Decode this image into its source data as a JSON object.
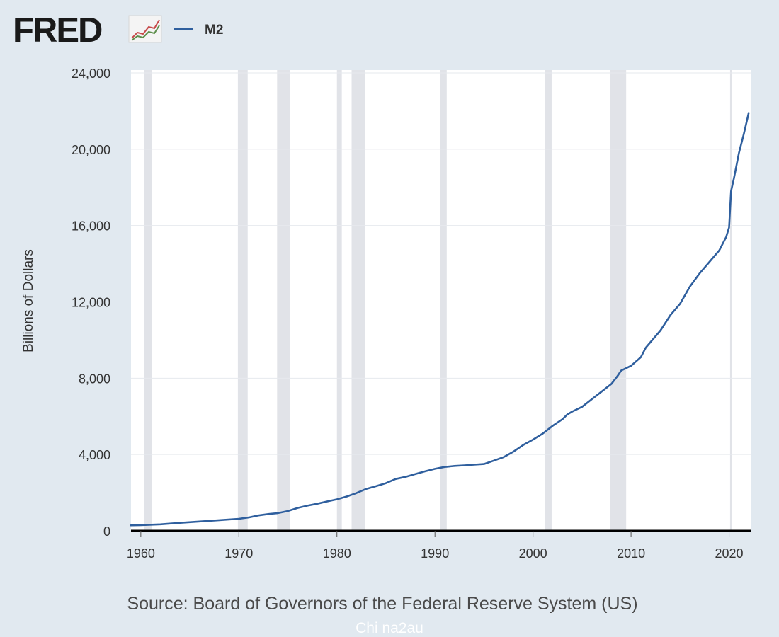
{
  "header": {
    "logo_text": "FRED",
    "legend_label": "M2"
  },
  "footer": {
    "source": "Source: Board of Governors of the Federal Reserve System (US)",
    "watermark": "Chi na2au"
  },
  "colors": {
    "background": "#e1e9f0",
    "plot_background": "#ffffff",
    "recession_band": "#e1e3e8",
    "series_line": "#2f5f9e",
    "axis_line": "#000000",
    "logo_text": "#1a1a1a",
    "logo_icon_red": "#c64a4a",
    "logo_icon_green": "#5e8f4c"
  },
  "chart_data": {
    "type": "line",
    "title": "",
    "xlabel": "",
    "ylabel": "Billions of Dollars",
    "xlim": [
      1959.0,
      2022.2
    ],
    "ylim": [
      0,
      24000
    ],
    "x_ticks": [
      1960,
      1970,
      1980,
      1990,
      2000,
      2010,
      2020
    ],
    "y_ticks": [
      0,
      4000,
      8000,
      12000,
      16000,
      20000,
      24000
    ],
    "x_tick_labels": [
      "1960",
      "1970",
      "1980",
      "1990",
      "2000",
      "2010",
      "2020"
    ],
    "y_tick_labels": [
      "0",
      "4,000",
      "8,000",
      "12,000",
      "16,000",
      "20,000",
      "24,000"
    ],
    "grid": "horizontal",
    "legend_position": "top-left",
    "recessions": [
      [
        1960.3,
        1961.1
      ],
      [
        1969.9,
        1970.9
      ],
      [
        1973.9,
        1975.2
      ],
      [
        1980.0,
        1980.5
      ],
      [
        1981.5,
        1982.9
      ],
      [
        1990.5,
        1991.2
      ],
      [
        2001.2,
        2001.9
      ],
      [
        2007.9,
        2009.5
      ],
      [
        2020.1,
        2020.3
      ]
    ],
    "series": [
      {
        "name": "M2",
        "color": "#2f5f9e",
        "x": [
          1959.0,
          1960,
          1962,
          1964,
          1966,
          1968,
          1970,
          1971,
          1972,
          1973,
          1974,
          1975,
          1976,
          1977,
          1978,
          1979,
          1980,
          1981,
          1982,
          1983,
          1984,
          1985,
          1986,
          1987,
          1988,
          1989,
          1990,
          1991,
          1992,
          1993,
          1994,
          1995,
          1996,
          1997,
          1998,
          1999,
          2000,
          2001,
          2002,
          2003,
          2003.5,
          2004,
          2005,
          2006,
          2007,
          2008,
          2008.6,
          2009,
          2010,
          2011,
          2011.5,
          2012,
          2013,
          2014,
          2015,
          2016,
          2017,
          2018,
          2019,
          2019.7,
          2020.0,
          2020.2,
          2020.5,
          2021,
          2021.5,
          2022.0
        ],
        "values": [
          290,
          300,
          340,
          420,
          490,
          560,
          630,
          700,
          810,
          880,
          930,
          1040,
          1200,
          1320,
          1420,
          1540,
          1650,
          1800,
          1980,
          2200,
          2340,
          2500,
          2720,
          2830,
          2980,
          3120,
          3250,
          3350,
          3400,
          3430,
          3470,
          3500,
          3680,
          3860,
          4150,
          4500,
          4780,
          5100,
          5500,
          5850,
          6100,
          6250,
          6500,
          6900,
          7300,
          7700,
          8100,
          8400,
          8650,
          9100,
          9600,
          9900,
          10500,
          11300,
          11900,
          12800,
          13500,
          14100,
          14700,
          15400,
          15900,
          17800,
          18500,
          19800,
          20800,
          21900
        ]
      }
    ]
  }
}
